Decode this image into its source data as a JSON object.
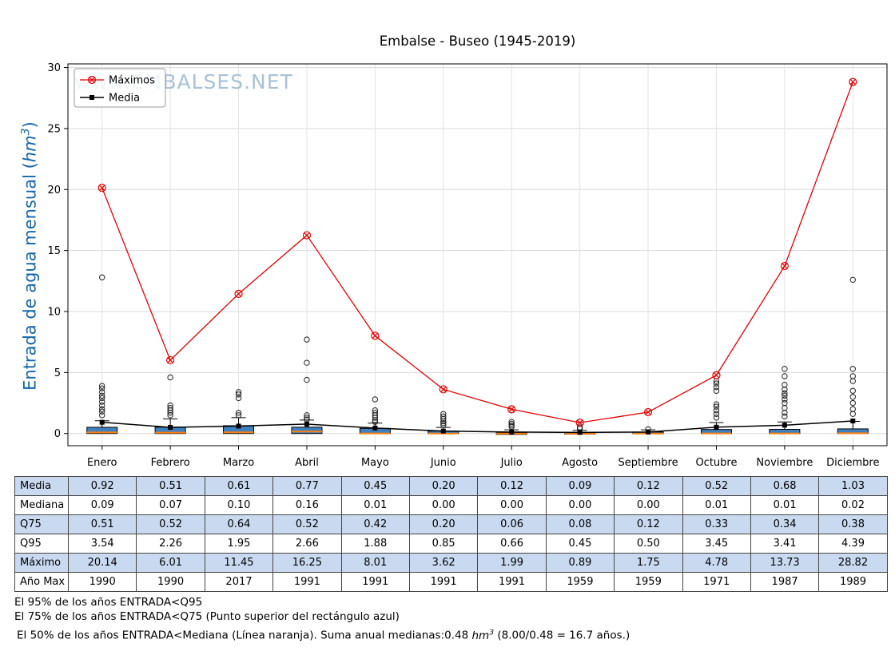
{
  "title": "Embalse - Buseo (1945-2019)",
  "watermark": "www.EMBALSES.NET",
  "y_axis": {
    "label_prefix": "Entrada de agua mensual (",
    "label_unit": "hm",
    "label_sup": "3",
    "label_suffix": ")"
  },
  "legend": {
    "maximos": "Máximos",
    "media": "Media"
  },
  "chart_data": {
    "type": "boxplot+line",
    "title": "Embalse - Buseo (1945-2019)",
    "ylabel": "Entrada de agua mensual (hm3)",
    "categories": [
      "Enero",
      "Febrero",
      "Marzo",
      "Abril",
      "Mayo",
      "Junio",
      "Julio",
      "Agosto",
      "Septiembre",
      "Octubre",
      "Noviembre",
      "Diciembre"
    ],
    "ylim": [
      0,
      30
    ],
    "yticks": [
      0,
      5,
      10,
      15,
      20,
      25,
      30
    ],
    "grid": true,
    "legend_position": "upper-left",
    "series": [
      {
        "name": "Máximos",
        "color": "#e60000",
        "marker": "x-circle",
        "values": [
          20.14,
          6.01,
          11.45,
          16.25,
          8.01,
          3.62,
          1.99,
          0.89,
          1.75,
          4.78,
          13.73,
          28.82
        ]
      },
      {
        "name": "Media",
        "color": "#000000",
        "marker": "square",
        "values": [
          0.92,
          0.51,
          0.61,
          0.77,
          0.45,
          0.2,
          0.12,
          0.09,
          0.12,
          0.52,
          0.68,
          1.03
        ]
      }
    ],
    "boxplot": {
      "box_color": "#4080bf",
      "median_color": "#ff7f0e",
      "q25": [
        0,
        0,
        0,
        0,
        0,
        0,
        0,
        0,
        0,
        0,
        0,
        0
      ],
      "median": [
        0.09,
        0.07,
        0.1,
        0.16,
        0.01,
        0.0,
        0.0,
        0.0,
        0.0,
        0.01,
        0.01,
        0.02
      ],
      "q75": [
        0.51,
        0.52,
        0.64,
        0.52,
        0.42,
        0.2,
        0.06,
        0.08,
        0.12,
        0.33,
        0.34,
        0.38
      ],
      "whisker_low": [
        0,
        0,
        0,
        0,
        0,
        0,
        0,
        0,
        0,
        0,
        0,
        0
      ],
      "whisker_high": [
        1.05,
        1.2,
        1.3,
        1.1,
        0.85,
        0.5,
        0.3,
        0.25,
        0.3,
        0.9,
        0.95,
        1.0
      ],
      "outliers": [
        [
          12.8,
          3.9,
          3.7,
          3.4,
          3.1,
          2.9,
          2.6,
          2.3,
          2.0,
          1.8,
          1.5
        ],
        [
          4.6,
          2.3,
          2.1,
          1.9,
          1.7,
          1.5
        ],
        [
          3.4,
          3.2,
          2.9,
          1.7,
          1.5
        ],
        [
          7.7,
          5.8,
          4.4,
          1.5,
          1.3,
          1.15
        ],
        [
          2.8,
          1.9,
          1.7,
          1.5,
          1.3,
          1.1,
          0.95
        ],
        [
          1.6,
          1.4,
          1.2,
          1.0,
          0.85,
          0.7
        ],
        [
          0.95,
          0.8,
          0.65,
          0.55
        ],
        [
          0.5,
          0.4
        ],
        [
          0.35
        ],
        [
          4.3,
          4.1,
          3.8,
          3.5,
          2.4,
          2.2,
          1.9,
          1.6,
          1.3
        ],
        [
          5.3,
          4.7,
          4.0,
          3.6,
          3.3,
          3.1,
          2.8,
          2.5,
          2.1,
          1.7,
          1.4
        ],
        [
          12.6,
          5.3,
          4.7,
          4.3,
          3.5,
          3.0,
          2.5,
          2.0,
          1.6
        ]
      ]
    }
  },
  "table": {
    "columns": [
      "Enero",
      "Febrero",
      "Marzo",
      "Abril",
      "Mayo",
      "Junio",
      "Julio",
      "Agosto",
      "Septiembre",
      "Octubre",
      "Noviembre",
      "Diciembre"
    ],
    "rows": [
      {
        "label": "Media",
        "values": [
          "0.92",
          "0.51",
          "0.61",
          "0.77",
          "0.45",
          "0.20",
          "0.12",
          "0.09",
          "0.12",
          "0.52",
          "0.68",
          "1.03"
        ]
      },
      {
        "label": "Mediana",
        "values": [
          "0.09",
          "0.07",
          "0.10",
          "0.16",
          "0.01",
          "0.00",
          "0.00",
          "0.00",
          "0.00",
          "0.01",
          "0.01",
          "0.02"
        ]
      },
      {
        "label": "Q75",
        "values": [
          "0.51",
          "0.52",
          "0.64",
          "0.52",
          "0.42",
          "0.20",
          "0.06",
          "0.08",
          "0.12",
          "0.33",
          "0.34",
          "0.38"
        ]
      },
      {
        "label": "Q95",
        "values": [
          "3.54",
          "2.26",
          "1.95",
          "2.66",
          "1.88",
          "0.85",
          "0.66",
          "0.45",
          "0.50",
          "3.45",
          "3.41",
          "4.39"
        ]
      },
      {
        "label": "Máximo",
        "values": [
          "20.14",
          "6.01",
          "11.45",
          "16.25",
          "8.01",
          "3.62",
          "1.99",
          "0.89",
          "1.75",
          "4.78",
          "13.73",
          "28.82"
        ]
      },
      {
        "label": "Año Max",
        "values": [
          "1990",
          "1990",
          "2017",
          "1991",
          "1991",
          "1991",
          "1991",
          "1959",
          "1959",
          "1971",
          "1987",
          "1989"
        ]
      }
    ]
  },
  "footnotes": {
    "line1": "El 95% de los años ENTRADA<Q95",
    "line2": "El 75% de los años ENTRADA<Q75 (Punto superior del rectángulo azul)",
    "line3_prefix": "El 50% de los años ENTRADA<Mediana (Línea naranja). Suma anual medianas:0.48 ",
    "line3_unit": "hm",
    "line3_sup": "3",
    "line3_suffix": " (8.00/0.48 = 16.7 años.)"
  },
  "colors": {
    "maximos_line": "#e60000",
    "media_line": "#000000",
    "box_fill": "#4080bf",
    "median_line": "#ff7f0e",
    "ylabel_blue": "#1565a7",
    "table_alt_row": "#c9daf0",
    "watermark": "#a7c2d8"
  }
}
